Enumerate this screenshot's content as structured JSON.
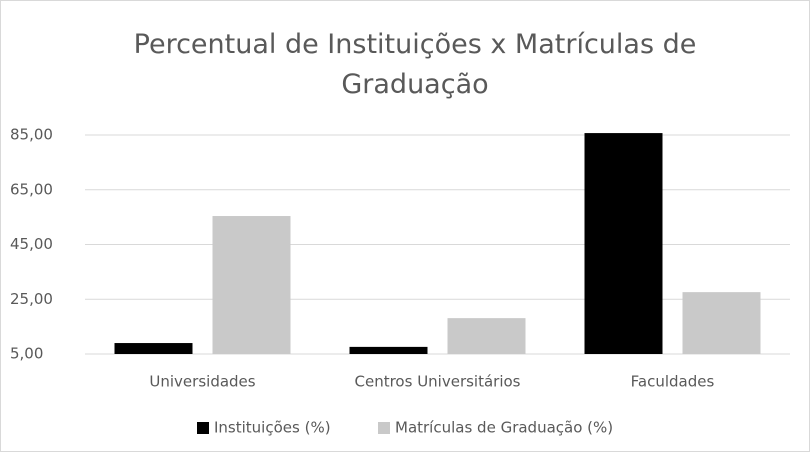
{
  "chart_data": {
    "type": "bar",
    "title": "Percentual de Instituições x Matrículas de Graduação",
    "categories": [
      "Universidades",
      "Centros Universitários",
      "Faculdades"
    ],
    "series": [
      {
        "name": "Instituições (%)",
        "color": "#000000",
        "values": [
          9.0,
          7.6,
          85.7
        ]
      },
      {
        "name": "Matrículas de Graduação (%)",
        "color": "#c9c9c9",
        "values": [
          55.4,
          18.1,
          27.6
        ]
      }
    ],
    "ylim": [
      5,
      85
    ],
    "yticks": [
      {
        "value": 5,
        "label": "5,00"
      },
      {
        "value": 25,
        "label": "25,00"
      },
      {
        "value": 45,
        "label": "45,00"
      },
      {
        "value": 65,
        "label": "65,00"
      },
      {
        "value": 85,
        "label": "85,00"
      }
    ],
    "grid": true,
    "legend": "bottom"
  }
}
